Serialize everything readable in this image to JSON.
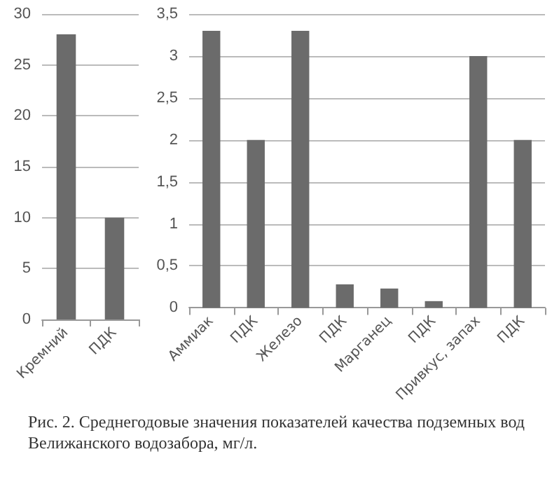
{
  "chart_data": [
    {
      "type": "bar",
      "categories": [
        "Кремний",
        "ПДК"
      ],
      "values": [
        28,
        10
      ],
      "color": "#6b6b6b",
      "ylim": [
        0,
        30
      ],
      "yticks": [
        0,
        5,
        10,
        15,
        20,
        25,
        30
      ],
      "grid": "y"
    },
    {
      "type": "bar",
      "categories": [
        "Аммиак",
        "ПДК",
        "Железо",
        "ПДК",
        "Марганец",
        "ПДК",
        "Привкус, запах",
        "ПДК"
      ],
      "values": [
        3.3,
        2,
        3.3,
        0.28,
        0.23,
        0.08,
        3,
        2
      ],
      "color": "#6b6b6b",
      "ylim": [
        0,
        3.5
      ],
      "yticks": [
        0,
        {
          "value": 0.5,
          "label": "0,5"
        },
        1,
        {
          "value": 1.5,
          "label": "1,5"
        },
        2,
        {
          "value": 2.5,
          "label": "2,5"
        },
        3,
        {
          "value": 3.5,
          "label": "3,5"
        }
      ],
      "grid": "y",
      "annotations": [
        "Рис. 2. Среднегодовые значения показателей качества подземных вод Велижанского водозабора, мг/л."
      ]
    }
  ]
}
